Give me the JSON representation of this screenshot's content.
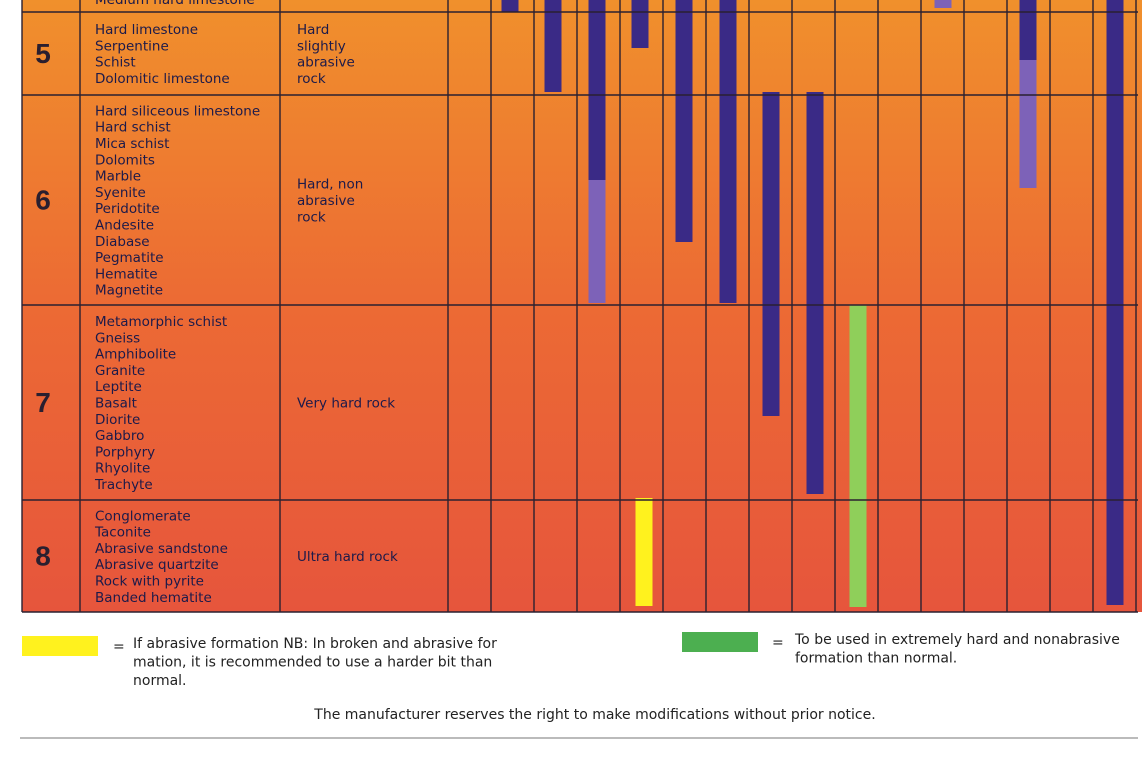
{
  "table": {
    "rows": [
      {
        "rocks": [
          "Medium hard limestone"
        ]
      },
      {
        "number": "5",
        "rocks": [
          "Hard limestone",
          "Serpentine",
          "Schist",
          "Dolomitic limestone"
        ],
        "description": [
          "Hard",
          "slightly",
          "abrasive",
          "rock"
        ]
      },
      {
        "number": "6",
        "rocks": [
          "Hard siliceous limestone",
          "Hard schist",
          "Mica schist",
          "Dolomits",
          "Marble",
          "Syenite",
          "Peridotite",
          "Andesite",
          "Diabase",
          "Pegmatite",
          "Hematite",
          "Magnetite"
        ],
        "description": [
          "Hard, non",
          "abrasive",
          "rock"
        ]
      },
      {
        "number": "7",
        "rocks": [
          "Metamorphic schist",
          "Gneiss",
          "Amphibolite",
          "Granite",
          "Leptite",
          "Basalt",
          "Diorite",
          "Gabbro",
          "Porphyry",
          "Rhyolite",
          "Trachyte"
        ],
        "description": [
          "Very hard rock"
        ]
      },
      {
        "number": "8",
        "rocks": [
          "Conglomerate",
          "Taconite",
          "Abrasive sandstone",
          "Abrasive quartzite",
          "Rock with pyrite",
          "Banded hematite"
        ],
        "description": [
          "Ultra hard rock"
        ]
      }
    ]
  },
  "legend": [
    {
      "color": "#fff21e",
      "separator": "=",
      "lines": [
        "If abrasive formation NB: In broken  and abrasive for",
        "mation, it is recommended to use a harder bit than",
        "normal."
      ]
    },
    {
      "color": "#4caf50",
      "separator": "=",
      "lines": [
        "To be used in extremely hard and nonabrasive",
        "formation than normal."
      ]
    }
  ],
  "footer": "The manufacturer reserves the right to make modifications without prior notice."
}
